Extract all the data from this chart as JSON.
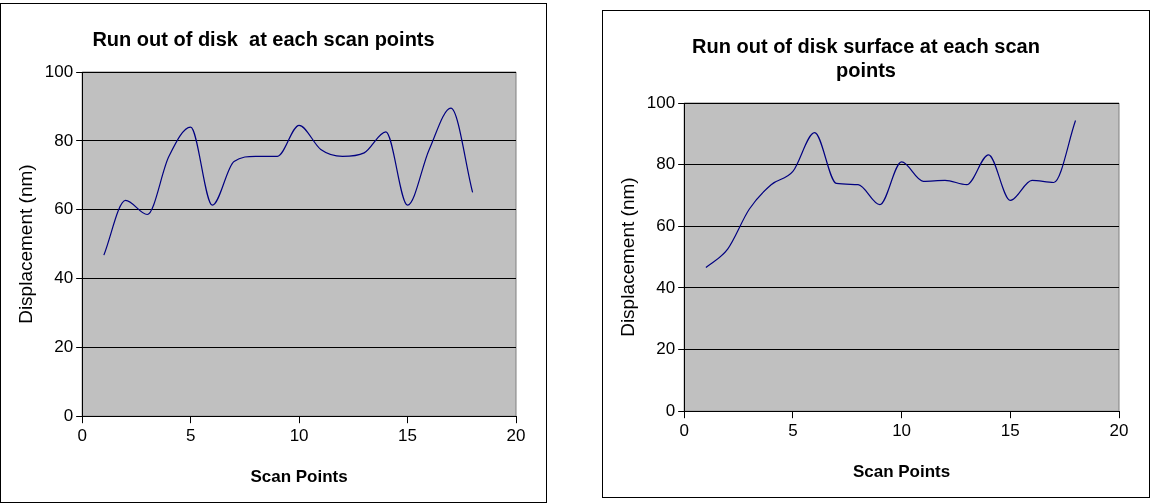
{
  "chart_data": [
    {
      "type": "line",
      "title": "Run out of disk  at each scan points",
      "xlabel": "Scan Points",
      "ylabel": "Displacement (nm)",
      "x": [
        1,
        2,
        3,
        4,
        5,
        6,
        7,
        8,
        9,
        10,
        11,
        12,
        13,
        14,
        15,
        16,
        17,
        18
      ],
      "series": [
        {
          "color": "#000080",
          "values": [
            46.8,
            62.7,
            58.6,
            75.5,
            84,
            61.3,
            74,
            75.5,
            75.5,
            84.5,
            77.5,
            75.5,
            76.5,
            82.6,
            61.3,
            77.5,
            89.5,
            65
          ]
        }
      ],
      "xlim": [
        0,
        20
      ],
      "xticks": [
        0,
        5,
        10,
        15,
        20
      ],
      "ylim": [
        0,
        100
      ],
      "yticks": [
        0,
        20,
        40,
        60,
        80,
        100
      ],
      "grid": "y",
      "legend": false,
      "marker": "none",
      "line_style": "solid"
    },
    {
      "type": "line",
      "title": "Run out of disk surface at each scan points",
      "xlabel": "Scan Points",
      "ylabel": "Displacement (nm)",
      "x": [
        1,
        2,
        3,
        4,
        5,
        6,
        7,
        8,
        9,
        10,
        11,
        12,
        13,
        14,
        15,
        16,
        17,
        18
      ],
      "series": [
        {
          "color": "#000080",
          "values": [
            46.6,
            52.6,
            65.6,
            73.5,
            77.8,
            90.4,
            73.9,
            73.5,
            67,
            80.9,
            74.6,
            74.9,
            73.5,
            83.2,
            68.4,
            74.9,
            74.2,
            94.3
          ]
        }
      ],
      "xlim": [
        0,
        20
      ],
      "xticks": [
        0,
        5,
        10,
        15,
        20
      ],
      "ylim": [
        0,
        100
      ],
      "yticks": [
        0,
        20,
        40,
        60,
        80,
        100
      ],
      "grid": "y",
      "legend": false,
      "marker": "none",
      "line_style": "solid"
    }
  ]
}
